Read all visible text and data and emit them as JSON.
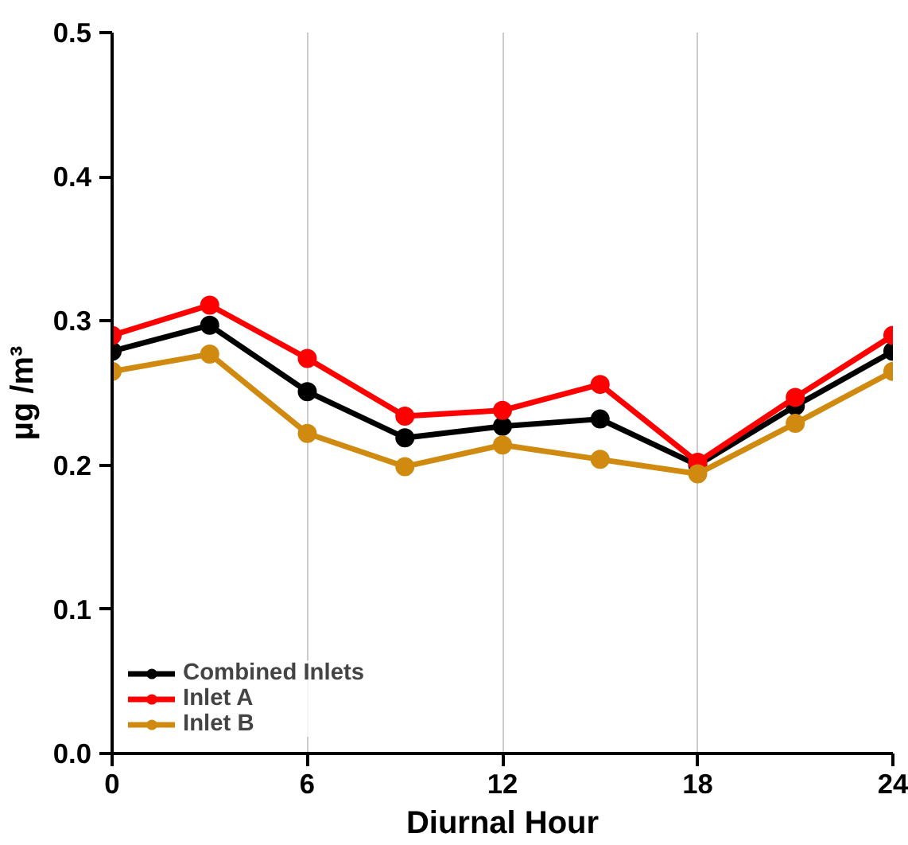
{
  "chart_data": {
    "type": "line",
    "xlabel": "Diurnal Hour",
    "ylabel": "µg /m³",
    "x": [
      0,
      3,
      6,
      9,
      12,
      15,
      18,
      21,
      24
    ],
    "series": [
      {
        "name": "Combined Inlets",
        "color": "#000000",
        "values": [
          0.279,
          0.297,
          0.251,
          0.219,
          0.227,
          0.232,
          0.2,
          0.241,
          0.279
        ]
      },
      {
        "name": "Inlet A",
        "color": "#ff0000",
        "values": [
          0.29,
          0.311,
          0.274,
          0.234,
          0.238,
          0.256,
          0.202,
          0.247,
          0.29
        ]
      },
      {
        "name": "Inlet B",
        "color": "#d08a10",
        "values": [
          0.265,
          0.277,
          0.222,
          0.199,
          0.214,
          0.204,
          0.194,
          0.229,
          0.265
        ]
      }
    ],
    "xlim": [
      0,
      24
    ],
    "xticks": [
      0,
      6,
      12,
      18,
      24
    ],
    "ylim": [
      0,
      0.5
    ],
    "yticks": [
      {
        "value": 0,
        "label": "0.0"
      },
      0.1,
      0.2,
      0.3,
      0.4,
      0.5
    ],
    "grid": "x",
    "legend": "bottom left",
    "marker": "circle",
    "line_style": "solid"
  }
}
